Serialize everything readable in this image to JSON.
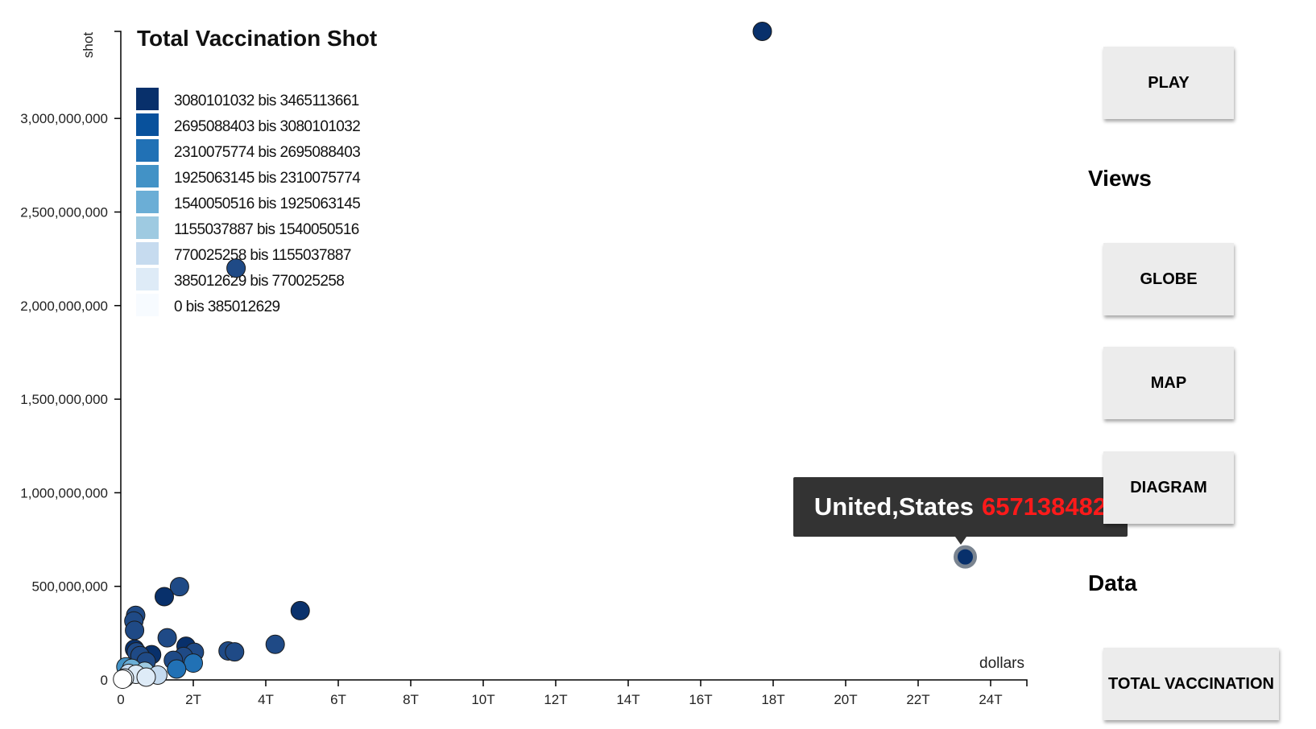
{
  "controls": {
    "play_label": "PLAY",
    "views_heading": "Views",
    "globe_label": "GLOBE",
    "map_label": "MAP",
    "diagram_label": "DIAGRAM",
    "data_heading": "Data",
    "total_vaccination_label": "TOTAL VACCINATION"
  },
  "tooltip": {
    "country": "United,States",
    "value": "657138482"
  },
  "chart_data": {
    "type": "scatter",
    "title": "Total Vaccination Shot",
    "xlabel": "dollars",
    "ylabel": "shot",
    "xlim": [
      0,
      25
    ],
    "ylim": [
      0,
      3465113661
    ],
    "x_ticks": [
      0,
      2,
      4,
      6,
      8,
      10,
      12,
      14,
      16,
      18,
      20,
      22,
      24
    ],
    "x_tick_labels": [
      "0",
      "2T",
      "4T",
      "6T",
      "8T",
      "10T",
      "12T",
      "14T",
      "16T",
      "18T",
      "20T",
      "22T",
      "24T"
    ],
    "y_ticks": [
      0,
      500000000,
      1000000000,
      1500000000,
      2000000000,
      2500000000,
      3000000000
    ],
    "y_tick_labels": [
      "0",
      "500,000,000",
      "1,000,000,000",
      "1,500,000,000",
      "2,000,000,000",
      "2,500,000,000",
      "3,000,000,000"
    ],
    "grid": false,
    "legend_position": "top-left",
    "legend": [
      {
        "label": "3080101032 bis 3465113661",
        "color": "#08306b"
      },
      {
        "label": "2695088403 bis 3080101032",
        "color": "#08519c"
      },
      {
        "label": "2310075774 bis 2695088403",
        "color": "#2171b5"
      },
      {
        "label": "1925063145 bis 2310075774",
        "color": "#4292c6"
      },
      {
        "label": "1540050516 bis 1925063145",
        "color": "#6baed6"
      },
      {
        "label": "1155037887 bis 1540050516",
        "color": "#9ecae1"
      },
      {
        "label": "770025258 bis 1155037887",
        "color": "#c6dbef"
      },
      {
        "label": "385012629 bis 770025258",
        "color": "#deebf7"
      },
      {
        "label": "0 bis 385012629",
        "color": "#f7fbff"
      }
    ],
    "points": [
      {
        "x": 17.7,
        "y": 3465000000,
        "color": "#08306b"
      },
      {
        "x": 3.18,
        "y": 2200000000,
        "color": "#1f4a86"
      },
      {
        "x": 23.3,
        "y": 657138482,
        "color": "#08306b",
        "highlight": true
      },
      {
        "x": 1.62,
        "y": 498000000,
        "color": "#1f4a86"
      },
      {
        "x": 1.2,
        "y": 445000000,
        "color": "#08306b"
      },
      {
        "x": 4.95,
        "y": 370000000,
        "color": "#0b326c"
      },
      {
        "x": 0.41,
        "y": 345000000,
        "color": "#1f4a86"
      },
      {
        "x": 0.36,
        "y": 315000000,
        "color": "#1f4a86"
      },
      {
        "x": 0.38,
        "y": 265000000,
        "color": "#1f4a86"
      },
      {
        "x": 1.28,
        "y": 225000000,
        "color": "#1f4a86"
      },
      {
        "x": 4.26,
        "y": 190000000,
        "color": "#1f4a86"
      },
      {
        "x": 1.8,
        "y": 180000000,
        "color": "#08306b"
      },
      {
        "x": 0.38,
        "y": 165000000,
        "color": "#08306b"
      },
      {
        "x": 0.43,
        "y": 150000000,
        "color": "#1f4a86"
      },
      {
        "x": 2.96,
        "y": 155000000,
        "color": "#1f4a86"
      },
      {
        "x": 3.14,
        "y": 150000000,
        "color": "#1f4a86"
      },
      {
        "x": 2.03,
        "y": 148000000,
        "color": "#1f4a86"
      },
      {
        "x": 0.85,
        "y": 135000000,
        "color": "#08306b"
      },
      {
        "x": 0.53,
        "y": 130000000,
        "color": "#1f4a86"
      },
      {
        "x": 1.73,
        "y": 125000000,
        "color": "#1f4a86"
      },
      {
        "x": 1.45,
        "y": 105000000,
        "color": "#1f4a86"
      },
      {
        "x": 0.7,
        "y": 98000000,
        "color": "#1f4a86"
      },
      {
        "x": 2.0,
        "y": 90000000,
        "color": "#2171b5"
      },
      {
        "x": 0.14,
        "y": 70000000,
        "color": "#4292c6"
      },
      {
        "x": 0.3,
        "y": 62000000,
        "color": "#6baed6"
      },
      {
        "x": 1.54,
        "y": 58000000,
        "color": "#2171b5"
      },
      {
        "x": 0.66,
        "y": 46000000,
        "color": "#9ecae1"
      },
      {
        "x": 0.22,
        "y": 35000000,
        "color": "#c6dbef"
      },
      {
        "x": 0.42,
        "y": 30000000,
        "color": "#deebf7"
      },
      {
        "x": 1.02,
        "y": 26000000,
        "color": "#c6dbef"
      },
      {
        "x": 0.7,
        "y": 15000000,
        "color": "#deebf7"
      },
      {
        "x": 0.1,
        "y": 10000000,
        "color": "#deebf7"
      },
      {
        "x": 0.05,
        "y": 4000000,
        "color": "#ffffff"
      }
    ]
  }
}
